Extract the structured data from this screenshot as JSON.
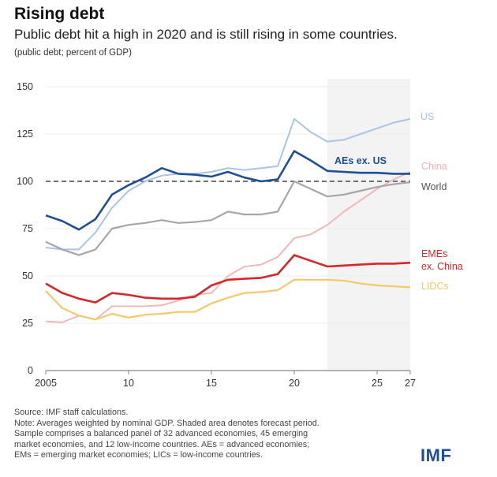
{
  "header": {
    "title": "Rising debt",
    "subtitle": "Public debt hit a high in 2020 and is still rising in some countries.",
    "unit_note": "(public debt; percent of GDP)"
  },
  "footer": {
    "notes": [
      "Source: IMF staff calculations.",
      "Note: Averages weighted by nominal GDP. Shaded area denotes forecast period.",
      "Sample comprises a balanced panel of 32 advanced economies, 45 emerging",
      "market economies, and 12 low-income countries. AEs = advanced economies;",
      "EMs = emerging market economies; LICs = low-income countries."
    ],
    "logo": "IMF"
  },
  "colors": {
    "us": "#a9c4e6",
    "aes_ex_us": "#1d4e96",
    "china": "#f2b2b2",
    "world": "#a6a6a6",
    "emes_ex_china": "#d62728",
    "lidcs": "#f5c868",
    "forecast_shade": "#f3f3f3",
    "reference_line": "#444444",
    "logo": "#1d4e96"
  },
  "chart_data": {
    "type": "line",
    "title": "Rising debt",
    "subtitle": "Public debt hit a high in 2020 and is still rising in some countries.",
    "xlabel": "",
    "ylabel": "public debt; percent of GDP",
    "x": [
      2005,
      2006,
      2007,
      2008,
      2009,
      2010,
      2011,
      2012,
      2013,
      2014,
      2015,
      2016,
      2017,
      2018,
      2019,
      2020,
      2021,
      2022,
      2023,
      2024,
      2025,
      2026,
      2027
    ],
    "xlim": [
      2005,
      2027
    ],
    "ylim": [
      0,
      150
    ],
    "x_ticks": [
      2005,
      2010,
      2015,
      2020,
      2025,
      2027
    ],
    "x_tick_labels": [
      "2005",
      "10",
      "15",
      "20",
      "25",
      "27"
    ],
    "y_ticks": [
      0,
      25,
      50,
      75,
      100,
      125,
      150
    ],
    "y_tick_labels": [
      "0",
      "25",
      "50",
      "75",
      "100",
      "125",
      "150"
    ],
    "grid": true,
    "reference_line": 100,
    "forecast_period": [
      2022,
      2027
    ],
    "legend": "inline-right",
    "series": [
      {
        "key": "us",
        "name": "US",
        "values": [
          65,
          64,
          64,
          73,
          86,
          95,
          100,
          103,
          104,
          104,
          105,
          107,
          106,
          107,
          108,
          133,
          126,
          121,
          122,
          125,
          128,
          131,
          133
        ]
      },
      {
        "key": "aes_ex_us",
        "name": "AEs ex. US",
        "values": [
          82,
          79,
          74.5,
          80,
          93,
          98,
          102,
          107,
          104,
          103.5,
          102.5,
          105,
          102,
          100,
          101,
          116,
          111,
          105.5,
          105,
          104.5,
          104.5,
          104,
          104
        ]
      },
      {
        "key": "china",
        "name": "China",
        "values": [
          26,
          25.5,
          29,
          27,
          34,
          34,
          34,
          34.5,
          37,
          40,
          41,
          50,
          55,
          56,
          60,
          70,
          72,
          77,
          84,
          90,
          96,
          101,
          105
        ]
      },
      {
        "key": "world",
        "name": "World",
        "values": [
          68,
          64,
          61,
          64,
          75,
          77,
          78,
          79.5,
          78,
          78.5,
          79.5,
          84,
          82.5,
          82.5,
          84,
          100,
          96,
          92,
          93,
          95,
          97,
          98.5,
          99.5
        ]
      },
      {
        "key": "emes_ex_china",
        "name": "EMEs ex. China",
        "values": [
          46,
          41,
          38,
          36,
          41,
          40,
          38.5,
          38,
          38,
          39,
          45,
          48,
          48.5,
          49,
          51,
          61,
          58,
          55,
          55.5,
          56,
          56.5,
          56.5,
          57
        ]
      },
      {
        "key": "lidcs",
        "name": "LIDCs",
        "values": [
          42,
          33,
          29,
          27,
          30,
          28,
          29.5,
          30,
          31,
          31,
          35.5,
          38.5,
          41,
          41.5,
          42.5,
          48,
          48,
          48,
          47.5,
          46,
          45,
          44.5,
          44
        ]
      }
    ],
    "inline_labels": [
      {
        "key": "us",
        "text": "US"
      },
      {
        "key": "aes_ex_us",
        "text": "AEs ex. US"
      },
      {
        "key": "china",
        "text": "China"
      },
      {
        "key": "world",
        "text": "World"
      },
      {
        "key": "emes_ex_china",
        "text": "EMEs",
        "text2": "ex. China"
      },
      {
        "key": "lidcs",
        "text": "LIDCs"
      }
    ]
  }
}
